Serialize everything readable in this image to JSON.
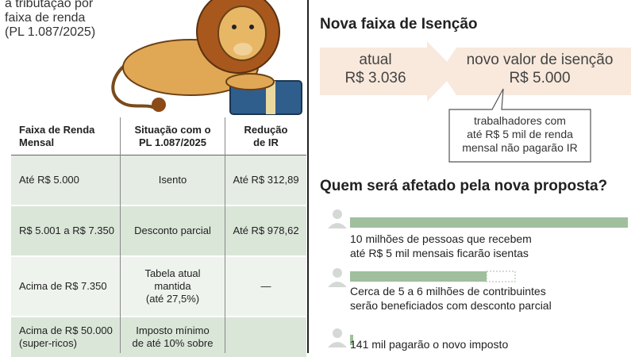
{
  "intro": [
    "a tributação por",
    "faixa de renda",
    "(PL 1.087/2025)"
  ],
  "table": {
    "header": [
      [
        "Faixa de Renda",
        "Mensal"
      ],
      [
        "Situação com o",
        "PL 1.087/2025"
      ],
      [
        "Redução",
        "de IR"
      ]
    ],
    "rows": [
      [
        [
          "Até R$ 5.000"
        ],
        [
          "Isento"
        ],
        [
          "Até R$ 312,89"
        ]
      ],
      [
        [
          "R$ 5.001 a R$ 7.350"
        ],
        [
          "Desconto parcial"
        ],
        [
          "Até R$ 978,62"
        ]
      ],
      [
        [
          "Acima de R$ 7.350"
        ],
        [
          "Tabela atual",
          "mantida",
          "(até 27,5%)"
        ],
        [
          "—"
        ]
      ],
      [
        [
          "Acima de R$ 50.000",
          "(super-ricos)"
        ],
        [
          "Imposto mínimo",
          "de até 10% sobre"
        ],
        [
          ""
        ]
      ]
    ]
  },
  "exemption": {
    "title": "Nova faixa de Isenção",
    "current_label": "atual",
    "current_value": "R$ 3.036",
    "new_label": "novo valor de isenção",
    "new_value": "R$ 5.000",
    "note": [
      "trabalhadores com",
      "até R$ 5 mil de renda",
      "mensal não pagarão IR"
    ]
  },
  "affected": {
    "title": "Quem será afetado pela nova proposta?",
    "items": [
      [
        "10 milhões de pessoas que recebem",
        "até R$ 5 mil mensais ficarão isentas"
      ],
      [
        "Cerca de 5 a 6 milhões de contribuintes",
        "serão beneficiados com desconto parcial"
      ],
      [
        "141 mil pagarão o novo imposto"
      ]
    ]
  }
}
